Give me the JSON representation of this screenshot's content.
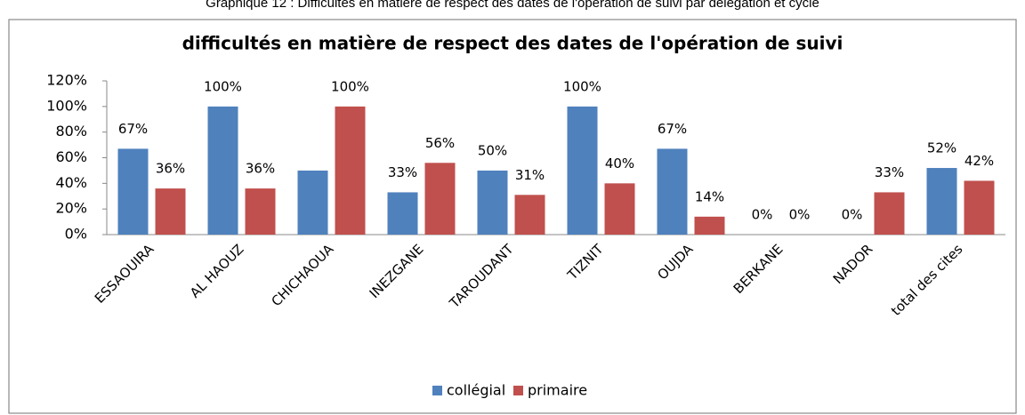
{
  "caption": "Graphique 12 : Difficultés en matière de respect des dates de l'opération de suivi par délégation et cycle",
  "chart_data": {
    "type": "bar",
    "title": "difficultés en matière de respect des dates de l'opération de suivi",
    "categories": [
      "ESSAOUIRA",
      "AL HAOUZ",
      "CHICHAOUA",
      "INEZGANE",
      "TAROUDANT",
      "TIZNIT",
      "OUJDA",
      "BERKANE",
      "NADOR",
      "total des cites"
    ],
    "series": [
      {
        "name": "collégial",
        "color": "#4f81bd",
        "values": [
          67,
          100,
          50,
          33,
          50,
          100,
          67,
          0,
          0,
          52
        ],
        "value_labels": [
          "67%",
          "100%",
          null,
          "33%",
          "50%",
          "100%",
          "67%",
          "0%",
          "0%",
          "52%"
        ]
      },
      {
        "name": "primaire",
        "color": "#c0504d",
        "values": [
          36,
          36,
          100,
          56,
          31,
          40,
          14,
          0,
          33,
          42
        ],
        "value_labels": [
          "36%",
          "36%",
          "100%",
          "56%",
          "31%",
          "40%",
          "14%",
          "0%",
          "33%",
          "42%"
        ]
      }
    ],
    "ylim": [
      0,
      120
    ],
    "yticks": [
      {
        "value": 0,
        "label": "0%"
      },
      {
        "value": 20,
        "label": "20%"
      },
      {
        "value": 40,
        "label": "40%"
      },
      {
        "value": 60,
        "label": "60%"
      },
      {
        "value": 80,
        "label": "80%"
      },
      {
        "value": 100,
        "label": "100%"
      },
      {
        "value": 120,
        "label": "120%"
      }
    ],
    "grid": false,
    "legend": "bottom"
  }
}
